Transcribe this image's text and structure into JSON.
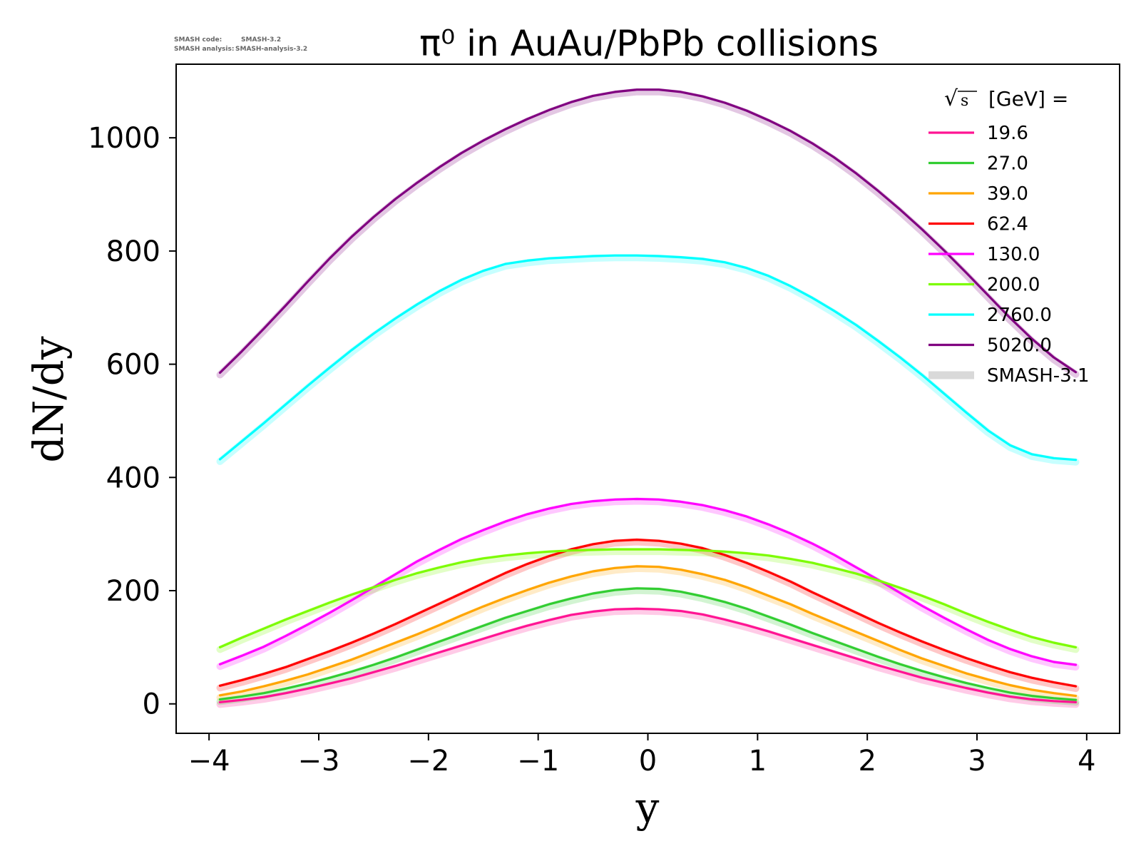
{
  "version_info": {
    "code_label": "SMASH code:",
    "code_value": "SMASH-3.2",
    "analysis_label": "SMASH analysis:",
    "analysis_value": "SMASH-analysis-3.2"
  },
  "chart_data": {
    "type": "line",
    "title": "π⁰ in AuAu/PbPb collisions",
    "xlabel": "y",
    "ylabel": "dN/dy",
    "xlim": [
      -4.3,
      4.3
    ],
    "ylim": [
      -52,
      1130
    ],
    "xticks": [
      -4,
      -3,
      -2,
      -1,
      0,
      1,
      2,
      3,
      4
    ],
    "xtick_labels": [
      "−4",
      "−3",
      "−2",
      "−1",
      "0",
      "1",
      "2",
      "3",
      "4"
    ],
    "yticks": [
      0,
      200,
      400,
      600,
      800,
      1000
    ],
    "ytick_labels": [
      "0",
      "200",
      "400",
      "600",
      "800",
      "1000"
    ],
    "grid": false,
    "legend": {
      "placement": "upper right",
      "title": "[GeV] =",
      "title_sqrt": "s",
      "reference_label": "SMASH-3.1",
      "reference_color": "#d9d9d9"
    },
    "x": [
      -3.9,
      -3.7,
      -3.5,
      -3.3,
      -3.1,
      -2.9,
      -2.7,
      -2.5,
      -2.3,
      -2.1,
      -1.9,
      -1.7,
      -1.5,
      -1.3,
      -1.1,
      -0.9,
      -0.7,
      -0.5,
      -0.3,
      -0.1,
      0.1,
      0.3,
      0.5,
      0.7,
      0.9,
      1.1,
      1.3,
      1.5,
      1.7,
      1.9,
      2.1,
      2.3,
      2.5,
      2.7,
      2.9,
      3.1,
      3.3,
      3.5,
      3.7,
      3.9
    ],
    "series": [
      {
        "name": "19.6",
        "color": "#ff1493",
        "values": [
          3,
          7,
          12,
          19,
          27,
          36,
          45,
          56,
          67,
          79,
          91,
          103,
          115,
          127,
          138,
          148,
          157,
          163,
          167,
          168,
          167,
          164,
          158,
          149,
          139,
          128,
          116,
          104,
          92,
          80,
          68,
          57,
          46,
          37,
          28,
          20,
          13,
          8,
          5,
          3
        ]
      },
      {
        "name": "27.0",
        "color": "#32cd32",
        "values": [
          8,
          13,
          19,
          27,
          36,
          46,
          57,
          69,
          82,
          96,
          110,
          124,
          138,
          152,
          164,
          176,
          186,
          195,
          201,
          204,
          203,
          198,
          190,
          180,
          168,
          154,
          140,
          125,
          111,
          97,
          83,
          70,
          58,
          47,
          37,
          28,
          20,
          14,
          10,
          7
        ]
      },
      {
        "name": "39.0",
        "color": "#ffa500",
        "values": [
          15,
          22,
          31,
          41,
          52,
          65,
          78,
          93,
          108,
          123,
          139,
          156,
          172,
          187,
          201,
          214,
          225,
          234,
          240,
          243,
          242,
          237,
          229,
          219,
          206,
          191,
          176,
          159,
          143,
          127,
          111,
          95,
          80,
          67,
          54,
          43,
          33,
          25,
          19,
          14
        ]
      },
      {
        "name": "62.4",
        "color": "#ff0000",
        "values": [
          32,
          42,
          53,
          65,
          79,
          93,
          108,
          124,
          141,
          159,
          177,
          195,
          213,
          231,
          247,
          261,
          273,
          282,
          288,
          290,
          288,
          283,
          275,
          263,
          249,
          233,
          216,
          197,
          179,
          161,
          143,
          126,
          110,
          95,
          81,
          68,
          56,
          46,
          38,
          31
        ]
      },
      {
        "name": "130.0",
        "color": "#ff00ff",
        "values": [
          70,
          85,
          101,
          120,
          140,
          161,
          183,
          206,
          229,
          252,
          272,
          291,
          307,
          322,
          335,
          345,
          353,
          358,
          361,
          362,
          361,
          357,
          351,
          342,
          331,
          317,
          301,
          283,
          263,
          241,
          219,
          196,
          173,
          152,
          132,
          113,
          97,
          84,
          74,
          69
        ]
      },
      {
        "name": "200.0",
        "color": "#7cfc00",
        "values": [
          100,
          117,
          133,
          149,
          164,
          179,
          193,
          206,
          219,
          231,
          241,
          250,
          257,
          262,
          266,
          269,
          271,
          272,
          273,
          273,
          273,
          272,
          271,
          269,
          266,
          262,
          256,
          249,
          240,
          230,
          218,
          205,
          191,
          176,
          160,
          145,
          131,
          118,
          108,
          100
        ]
      },
      {
        "name": "2760.0",
        "color": "#00ffff",
        "values": [
          432,
          464,
          496,
          529,
          562,
          594,
          625,
          654,
          681,
          706,
          729,
          749,
          765,
          777,
          783,
          787,
          789,
          791,
          792,
          792,
          791,
          789,
          786,
          780,
          770,
          756,
          738,
          717,
          694,
          669,
          641,
          612,
          581,
          548,
          515,
          483,
          457,
          441,
          434,
          431
        ]
      },
      {
        "name": "5020.0",
        "color": "#800080",
        "values": [
          585,
          623,
          663,
          704,
          746,
          787,
          825,
          860,
          892,
          921,
          948,
          973,
          995,
          1015,
          1033,
          1049,
          1063,
          1074,
          1081,
          1085,
          1085,
          1081,
          1073,
          1062,
          1048,
          1031,
          1012,
          990,
          965,
          937,
          906,
          873,
          838,
          801,
          762,
          722,
          682,
          645,
          612,
          586
        ]
      }
    ]
  }
}
